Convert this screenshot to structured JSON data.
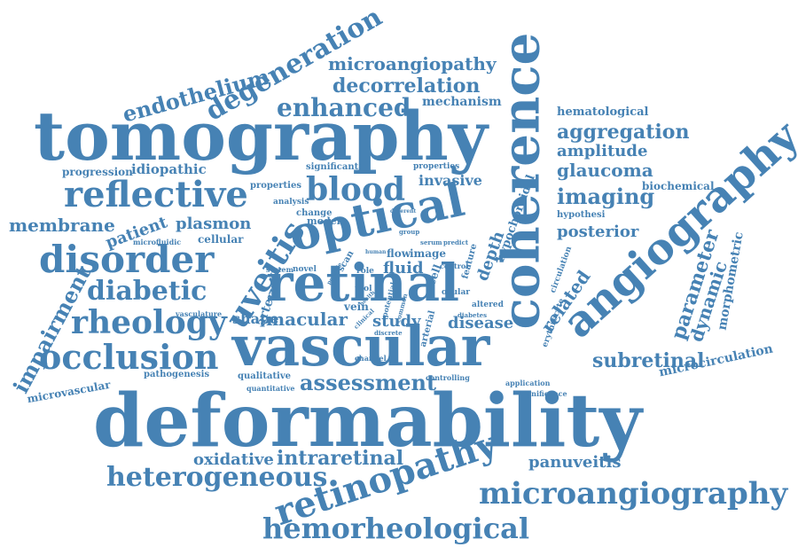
{
  "cloud": {
    "color": "#4682b4",
    "words": [
      "deformability",
      "tomography",
      "vascular",
      "retinal",
      "coherence",
      "optical",
      "angiography",
      "disorder",
      "retinopathy",
      "microangiography",
      "hemorheological",
      "reflective",
      "occlusion",
      "rheology",
      "blood",
      "uveitis",
      "degeneration",
      "endothelium",
      "diabetic",
      "enhanced",
      "decorrelation",
      "microangiopathy",
      "heterogeneous",
      "impairment",
      "aggregation",
      "imaging",
      "glaucoma",
      "amplitude",
      "posterior",
      "macular",
      "disease",
      "assessment",
      "intraretinal",
      "oxidative",
      "panuveitis",
      "subretinal",
      "microcirculation",
      "membrane",
      "patient",
      "plasmon",
      "cellular",
      "idiopathic",
      "progression",
      "mechanism",
      "hematological",
      "related",
      "parameter",
      "dynamic",
      "morphometric",
      "hypochoroidal",
      "depth",
      "fluid",
      "study",
      "shape",
      "artery",
      "vein",
      "flow",
      "image",
      "invasive",
      "biochemical",
      "hypothesi",
      "microvascular",
      "pathogenesis",
      "qualitative",
      "quantitative",
      "controlling",
      "application",
      "significance",
      "channel",
      "vasculature",
      "microfluidic",
      "development",
      "erythrocyte",
      "circulation",
      "significant",
      "properties",
      "analysis",
      "change",
      "model",
      "system",
      "novel",
      "scan",
      "role",
      "tool",
      "arterial",
      "feature",
      "ocular",
      "cell",
      "serum",
      "group",
      "different",
      "predict",
      "control",
      "human",
      "altered",
      "diabetes",
      "common",
      "possible",
      "discrete",
      "potential",
      "clinical",
      "health"
    ]
  }
}
